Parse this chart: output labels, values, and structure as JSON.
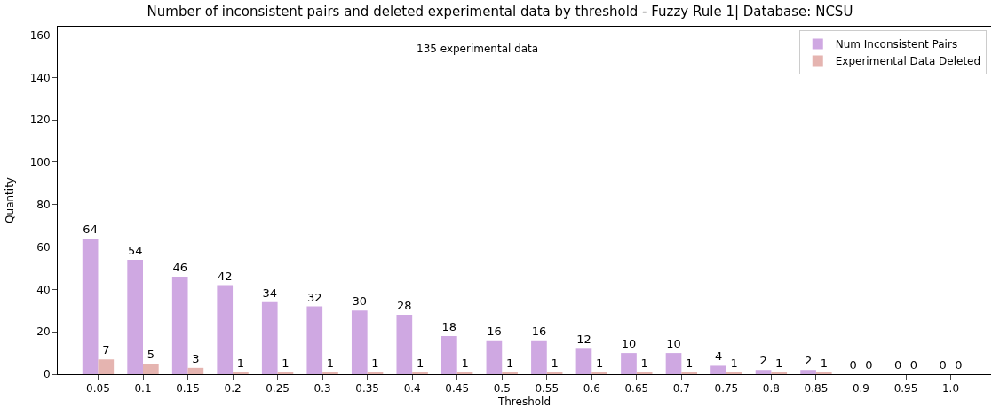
{
  "chart_data": {
    "type": "bar",
    "title": "Number of inconsistent pairs and deleted experimental data by threshold - Fuzzy Rule 1| Database: NCSU",
    "xlabel": "Threshold",
    "ylabel": "Quantity",
    "categories": [
      "0.05",
      "0.1",
      "0.15",
      "0.2",
      "0.25",
      "0.3",
      "0.35",
      "0.4",
      "0.45",
      "0.5",
      "0.55",
      "0.6",
      "0.65",
      "0.7",
      "0.75",
      "0.8",
      "0.85",
      "0.9",
      "0.95",
      "1.0"
    ],
    "series": [
      {
        "name": "Num Inconsistent Pairs",
        "color": "#cfa8e2",
        "values": [
          64,
          54,
          46,
          42,
          34,
          32,
          30,
          28,
          18,
          16,
          16,
          12,
          10,
          10,
          4,
          2,
          2,
          0,
          0,
          0
        ]
      },
      {
        "name": "Experimental Data Deleted",
        "color": "#e5b4b0",
        "values": [
          7,
          5,
          3,
          1,
          1,
          1,
          1,
          1,
          1,
          1,
          1,
          1,
          1,
          1,
          1,
          1,
          1,
          0,
          0,
          0
        ]
      }
    ],
    "annotations": [
      "135 experimental data"
    ],
    "ylim": [
      0,
      164
    ],
    "yticks": [
      0,
      20,
      40,
      60,
      80,
      100,
      120,
      140,
      160
    ],
    "data_labels": true,
    "legend": "top right"
  }
}
